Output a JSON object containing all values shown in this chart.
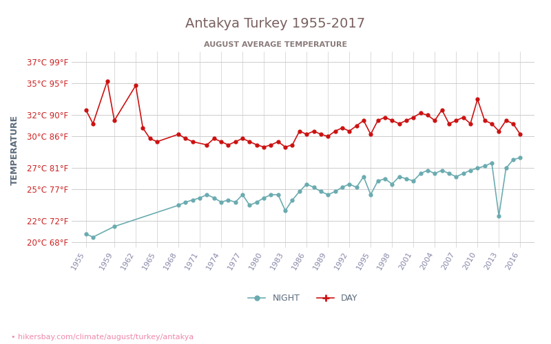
{
  "title": "Antakya Turkey 1955-2017",
  "subtitle": "AUGUST AVERAGE TEMPERATURE",
  "ylabel": "TEMPERATURE",
  "url_text": "hikersbay.com/climate/august/turkey/antakya",
  "bg_color": "#ffffff",
  "grid_color": "#cccccc",
  "title_color": "#7a6060",
  "subtitle_color": "#8a7a7a",
  "ylabel_color": "#5a6a7a",
  "ytick_color": "#cc2222",
  "xtick_color": "#8888aa",
  "day_color": "#cc1111",
  "night_color": "#6aabb0",
  "legend_text_color": "#5a6a7a",
  "url_color": "#ee88aa",
  "years": [
    1955,
    1956,
    1957,
    1958,
    1959,
    1960,
    1961,
    1962,
    1963,
    1964,
    1965,
    1966,
    1967,
    1968,
    1969,
    1970,
    1971,
    1972,
    1973,
    1974,
    1975,
    1976,
    1977,
    1978,
    1979,
    1980,
    1981,
    1982,
    1983,
    1984,
    1985,
    1986,
    1987,
    1988,
    1989,
    1990,
    1991,
    1992,
    1993,
    1994,
    1995,
    1996,
    1997,
    1998,
    1999,
    2000,
    2001,
    2002,
    2003,
    2004,
    2005,
    2006,
    2007,
    2008,
    2009,
    2010,
    2011,
    2012,
    2013,
    2014,
    2015,
    2016
  ],
  "day_temps": [
    32.5,
    31.2,
    null,
    35.2,
    31.5,
    null,
    null,
    34.8,
    30.8,
    29.8,
    29.5,
    null,
    null,
    30.2,
    29.8,
    29.5,
    null,
    29.2,
    29.8,
    29.5,
    29.2,
    29.5,
    29.8,
    29.5,
    29.2,
    29.0,
    29.2,
    29.5,
    29.0,
    29.2,
    30.5,
    30.2,
    30.5,
    30.2,
    30.0,
    30.5,
    30.8,
    30.5,
    31.0,
    31.5,
    30.2,
    31.5,
    31.8,
    31.5,
    31.2,
    31.5,
    31.8,
    32.2,
    32.0,
    31.5,
    32.5,
    31.2,
    31.5,
    31.8,
    31.2,
    33.5,
    31.5,
    31.2,
    30.5,
    31.5,
    31.2,
    30.2
  ],
  "night_temps": [
    20.8,
    20.5,
    null,
    null,
    21.5,
    null,
    null,
    null,
    null,
    null,
    null,
    null,
    null,
    23.5,
    23.8,
    24.0,
    24.2,
    24.5,
    24.2,
    23.8,
    24.0,
    23.8,
    24.5,
    23.5,
    23.8,
    24.2,
    24.5,
    24.5,
    23.0,
    24.0,
    24.8,
    25.5,
    25.2,
    24.8,
    24.5,
    24.8,
    25.2,
    25.5,
    25.2,
    26.2,
    24.5,
    25.8,
    26.0,
    25.5,
    26.2,
    26.0,
    25.8,
    26.5,
    26.8,
    26.5,
    26.8,
    26.5,
    26.2,
    26.5,
    26.8,
    27.0,
    27.2,
    27.5,
    22.5,
    27.0,
    27.8,
    28.0
  ],
  "ylim_min": 19.5,
  "ylim_max": 38.0,
  "yticks_c": [
    20,
    22,
    25,
    27,
    30,
    32,
    35,
    37
  ],
  "yticks_f": [
    68,
    72,
    77,
    81,
    86,
    90,
    95,
    99
  ],
  "xtick_years": [
    1955,
    1959,
    1962,
    1965,
    1968,
    1971,
    1974,
    1977,
    1980,
    1983,
    1986,
    1989,
    1992,
    1995,
    1998,
    2001,
    2004,
    2007,
    2010,
    2013,
    2016
  ]
}
